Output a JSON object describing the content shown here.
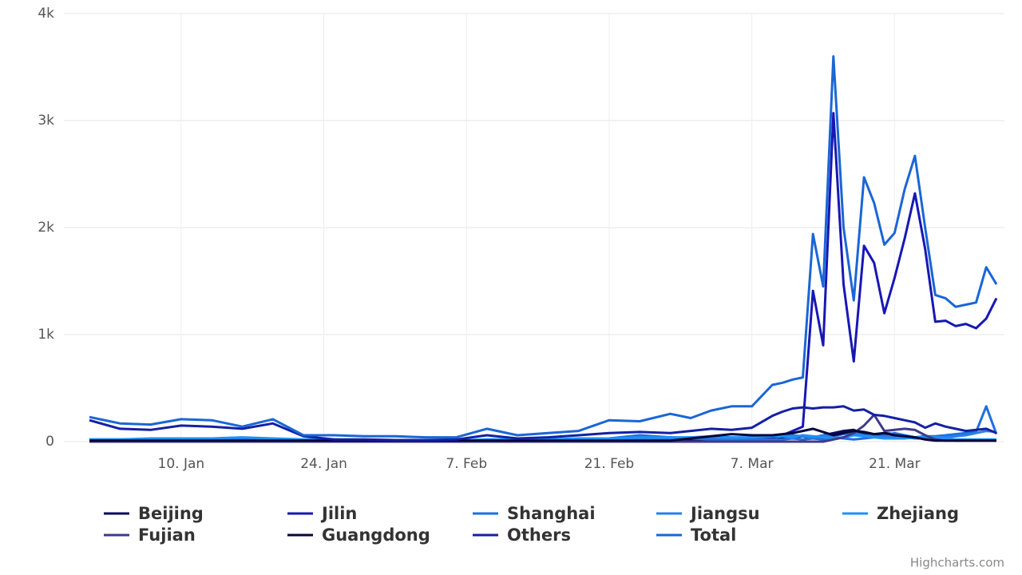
{
  "chart_data": {
    "type": "line",
    "x": [
      "1. Jan",
      "4. Jan",
      "7. Jan",
      "10. Jan",
      "13. Jan",
      "16. Jan",
      "19. Jan",
      "22. Jan",
      "25. Jan",
      "28. Jan",
      "31. Jan",
      "3. Feb",
      "6. Feb",
      "9. Feb",
      "12. Feb",
      "15. Feb",
      "18. Feb",
      "21. Feb",
      "24. Feb",
      "27. Feb",
      "1. Mar",
      "3. Mar",
      "5. Mar",
      "7. Mar",
      "9. Mar",
      "10. Mar",
      "11. Mar",
      "12. Mar",
      "13. Mar",
      "14. Mar",
      "15. Mar",
      "16. Mar",
      "17. Mar",
      "18. Mar",
      "19. Mar",
      "20. Mar",
      "21. Mar",
      "22. Mar",
      "23. Mar",
      "24. Mar",
      "25. Mar",
      "26. Mar",
      "27. Mar",
      "28. Mar",
      "29. Mar",
      "30. Mar",
      "31. Mar"
    ],
    "xticks": [
      "10. Jan",
      "24. Jan",
      "7. Feb",
      "21. Feb",
      "7. Mar",
      "21. Mar"
    ],
    "ylim": [
      0,
      4000
    ],
    "yticks": [
      0,
      {
        "value": 1000,
        "label": "1k"
      },
      {
        "value": 2000,
        "label": "2k"
      },
      {
        "value": 3000,
        "label": "3k"
      },
      {
        "value": 4000,
        "label": "4k"
      }
    ],
    "grid": true,
    "credit": "Highcharts.com",
    "series": [
      {
        "name": "Beijing",
        "color": "#0b0a5c",
        "values": [
          10,
          10,
          20,
          10,
          10,
          20,
          10,
          10,
          10,
          10,
          10,
          10,
          10,
          10,
          10,
          10,
          10,
          10,
          10,
          20,
          20,
          20,
          30,
          20,
          20,
          30,
          40,
          50,
          30,
          60,
          80,
          100,
          110,
          70,
          60,
          80,
          70,
          50,
          40,
          30,
          20,
          20,
          10,
          10,
          10,
          10,
          10
        ]
      },
      {
        "name": "Jilin",
        "color": "#1717b5",
        "values": [
          0,
          0,
          0,
          0,
          0,
          0,
          0,
          0,
          0,
          0,
          0,
          0,
          0,
          0,
          0,
          0,
          0,
          0,
          0,
          0,
          0,
          0,
          10,
          20,
          40,
          60,
          100,
          140,
          1410,
          900,
          3070,
          1470,
          750,
          1830,
          1670,
          1200,
          1530,
          1900,
          2320,
          1800,
          1120,
          1130,
          1080,
          1100,
          1060,
          1150,
          1340
        ]
      },
      {
        "name": "Shanghai",
        "color": "#1f6fdf",
        "values": [
          20,
          20,
          20,
          30,
          20,
          30,
          20,
          10,
          10,
          10,
          10,
          10,
          10,
          10,
          20,
          20,
          20,
          30,
          60,
          40,
          30,
          20,
          20,
          20,
          20,
          20,
          30,
          20,
          30,
          20,
          40,
          30,
          20,
          30,
          40,
          60,
          80,
          60,
          40,
          50,
          50,
          60,
          70,
          80,
          90,
          330,
          70
        ]
      },
      {
        "name": "Jiangsu",
        "color": "#2a7fe6",
        "values": [
          10,
          10,
          10,
          10,
          10,
          10,
          10,
          10,
          10,
          10,
          10,
          10,
          10,
          20,
          20,
          10,
          20,
          20,
          30,
          30,
          30,
          40,
          30,
          40,
          50,
          60,
          60,
          50,
          40,
          60,
          50,
          70,
          80,
          60,
          50,
          40,
          50,
          40,
          30,
          30,
          40,
          40,
          50,
          60,
          80,
          100,
          90
        ]
      },
      {
        "name": "Zhejiang",
        "color": "#1e90f5",
        "values": [
          20,
          20,
          30,
          30,
          30,
          40,
          30,
          20,
          20,
          10,
          10,
          10,
          10,
          20,
          20,
          20,
          30,
          30,
          40,
          40,
          40,
          50,
          40,
          40,
          50,
          50,
          40,
          60,
          50,
          40,
          30,
          40,
          60,
          50,
          40,
          30,
          30,
          30,
          40,
          50,
          40,
          30,
          20,
          20,
          20,
          20,
          20
        ]
      },
      {
        "name": "Fujian",
        "color": "#3d3a8c",
        "values": [
          0,
          0,
          0,
          0,
          0,
          0,
          0,
          0,
          0,
          0,
          0,
          0,
          0,
          0,
          0,
          0,
          0,
          0,
          0,
          0,
          0,
          0,
          0,
          0,
          0,
          0,
          0,
          0,
          0,
          0,
          20,
          40,
          80,
          150,
          250,
          100,
          110,
          120,
          110,
          60,
          20,
          10,
          10,
          10,
          10,
          10,
          10
        ]
      },
      {
        "name": "Guangdong",
        "color": "#06063a",
        "values": [
          10,
          10,
          10,
          10,
          10,
          10,
          10,
          10,
          10,
          10,
          10,
          10,
          10,
          10,
          10,
          10,
          10,
          10,
          10,
          10,
          30,
          50,
          70,
          60,
          60,
          70,
          80,
          100,
          120,
          90,
          60,
          80,
          100,
          90,
          70,
          80,
          60,
          50,
          40,
          20,
          10,
          10,
          10,
          10,
          10,
          10,
          10
        ]
      },
      {
        "name": "Others",
        "color": "#1420a3",
        "values": [
          200,
          120,
          110,
          150,
          140,
          120,
          170,
          50,
          20,
          20,
          15,
          15,
          20,
          60,
          30,
          40,
          60,
          80,
          90,
          80,
          100,
          120,
          110,
          130,
          240,
          280,
          310,
          320,
          310,
          320,
          320,
          330,
          290,
          300,
          250,
          240,
          220,
          200,
          180,
          130,
          170,
          140,
          120,
          100,
          110,
          120,
          80
        ]
      },
      {
        "name": "Total",
        "color": "#1a66d6",
        "values": [
          230,
          170,
          160,
          210,
          200,
          140,
          210,
          60,
          60,
          50,
          50,
          40,
          40,
          120,
          60,
          80,
          100,
          200,
          190,
          260,
          220,
          290,
          330,
          330,
          530,
          550,
          580,
          600,
          1940,
          1450,
          3600,
          2000,
          1320,
          2470,
          2230,
          1840,
          1950,
          2360,
          2670,
          2000,
          1370,
          1340,
          1260,
          1280,
          1300,
          1630,
          1470
        ]
      }
    ]
  }
}
